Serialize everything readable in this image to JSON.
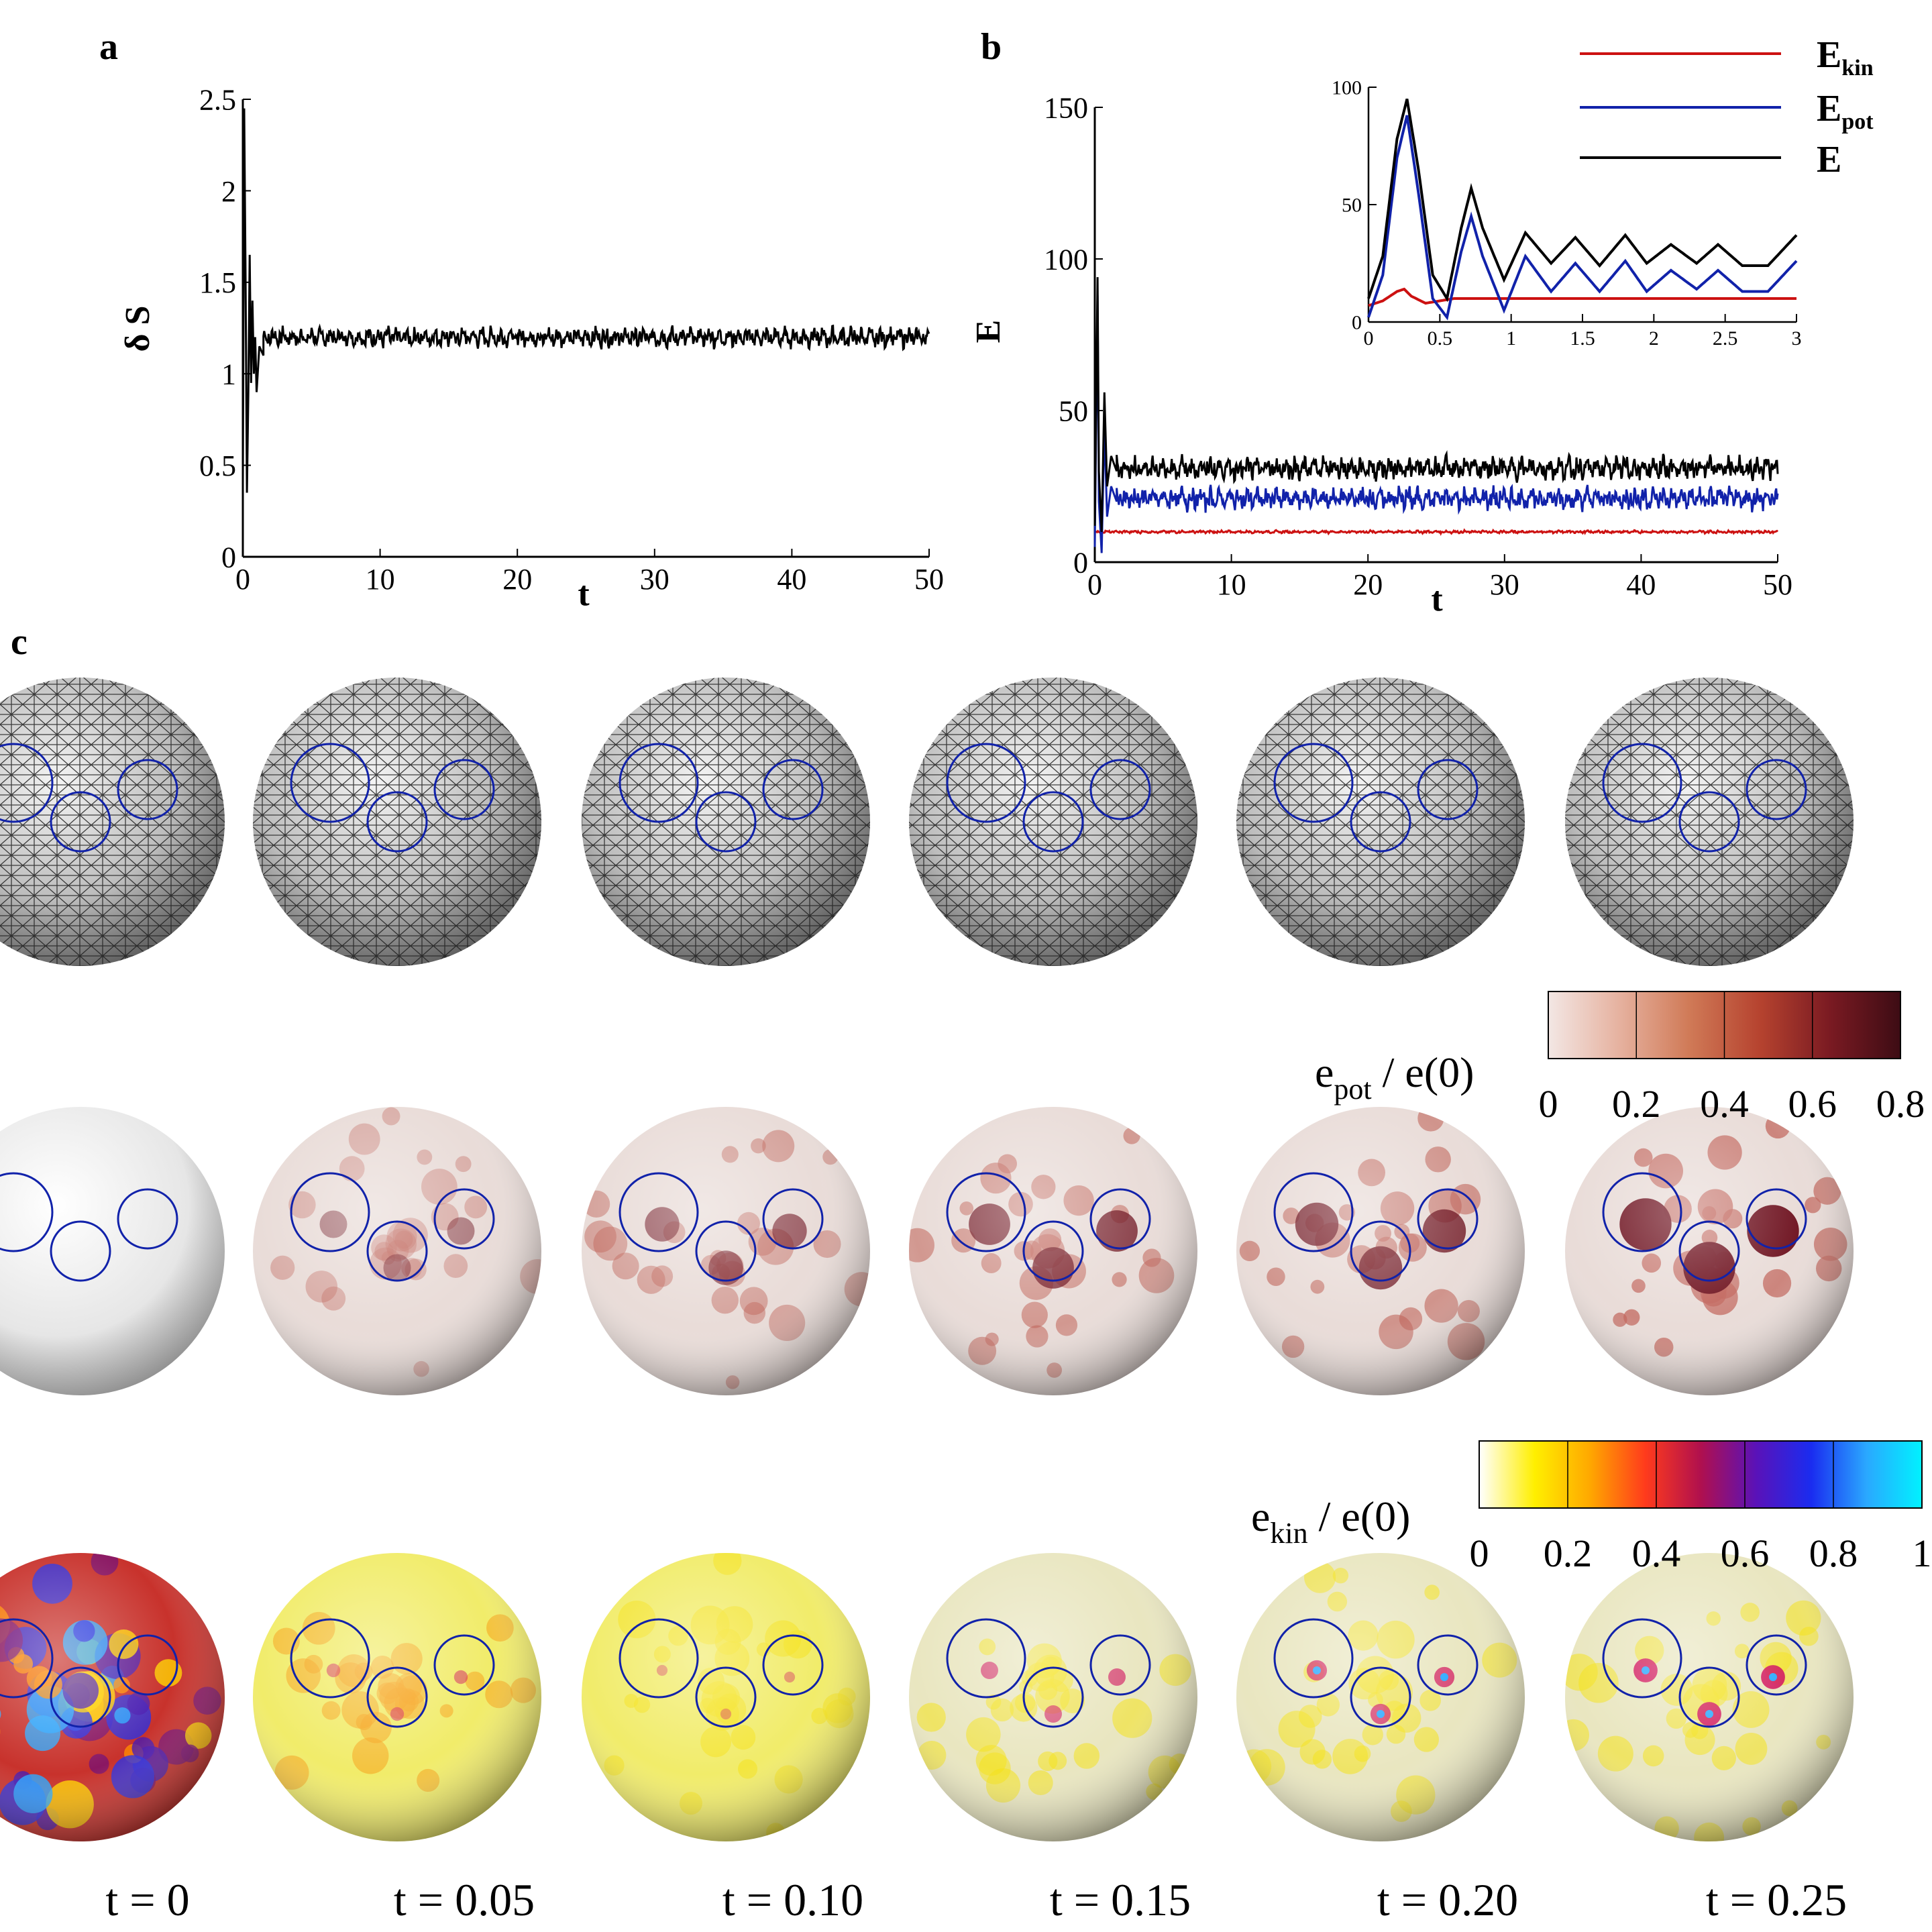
{
  "panels": {
    "a": "a",
    "b": "b",
    "c": "c"
  },
  "chart_data": [
    {
      "type": "line",
      "panel": "a",
      "xlabel": "t",
      "ylabel": "δ S",
      "xlim": [
        0,
        50
      ],
      "ylim": [
        0,
        2.5
      ],
      "xticks": [
        0,
        10,
        20,
        30,
        40,
        50
      ],
      "yticks": [
        0,
        0.5,
        1,
        1.5,
        2,
        2.5
      ],
      "xtick_labels": [
        "0",
        "10",
        "20",
        "30",
        "40",
        "50"
      ],
      "ytick_labels": [
        "0",
        "0.5",
        "1",
        "1.5",
        "2",
        "2.5"
      ],
      "series": [
        {
          "name": "δS",
          "color": "#000000",
          "baseline": 1.2,
          "noise": 0.05,
          "initial": {
            "t": [
              0,
              0.1,
              0.2,
              0.3,
              0.4,
              0.5,
              0.6,
              0.7,
              0.8,
              0.9,
              1.0,
              1.2,
              1.5
            ],
            "y": [
              0.4,
              2.45,
              1.5,
              0.35,
              0.9,
              1.65,
              0.95,
              1.4,
              1.0,
              1.2,
              0.9,
              1.15,
              1.1
            ]
          }
        }
      ]
    },
    {
      "type": "line",
      "panel": "b",
      "xlabel": "t",
      "ylabel": "E",
      "xlim": [
        0,
        50
      ],
      "ylim": [
        0,
        150
      ],
      "xticks": [
        0,
        10,
        20,
        30,
        40,
        50
      ],
      "yticks": [
        0,
        50,
        100,
        150
      ],
      "xtick_labels": [
        "0",
        "10",
        "20",
        "30",
        "40",
        "50"
      ],
      "ytick_labels": [
        "0",
        "50",
        "100",
        "150"
      ],
      "legend": {
        "position": "top-right",
        "entries": [
          {
            "base": "E",
            "sub": "kin",
            "color": "#cc1111"
          },
          {
            "base": "E",
            "sub": "pot",
            "color": "#1122aa"
          },
          {
            "base": "E",
            "sub": "",
            "color": "#000000"
          }
        ]
      },
      "series": [
        {
          "name": "E_kin",
          "color": "#cc1111",
          "baseline": 10,
          "noise": 0.4
        },
        {
          "name": "E_pot",
          "color": "#1122aa",
          "baseline": 21,
          "noise": 3.5,
          "initial": {
            "t": [
              0,
              0.2,
              0.3,
              0.5,
              0.7,
              0.9,
              1.2,
              1.6
            ],
            "y": [
              5,
              88,
              20,
              3,
              45,
              15,
              25,
              20
            ]
          }
        },
        {
          "name": "E",
          "color": "#000000",
          "baseline": 31,
          "noise": 3.5,
          "initial": {
            "t": [
              0,
              0.2,
              0.3,
              0.5,
              0.7,
              0.9,
              1.2,
              1.6
            ],
            "y": [
              12,
              94,
              30,
              10,
              56,
              25,
              35,
              30
            ]
          }
        }
      ],
      "inset": {
        "xlim": [
          0,
          3
        ],
        "ylim": [
          0,
          100
        ],
        "xticks": [
          0,
          0.5,
          1,
          1.5,
          2,
          2.5,
          3
        ],
        "yticks": [
          0,
          50,
          100
        ],
        "xtick_labels": [
          "0",
          "0.5",
          "1",
          "1.5",
          "2",
          "2.5",
          "3"
        ],
        "ytick_labels": [
          "0",
          "50",
          "100"
        ],
        "series": [
          {
            "name": "E_kin",
            "color": "#cc1111",
            "t": [
              0,
              0.1,
              0.2,
              0.25,
              0.3,
              0.4,
              0.5,
              0.6,
              0.8,
              1.0,
              1.5,
              2.0,
              2.5,
              3.0
            ],
            "y": [
              7,
              9,
              13,
              14,
              11,
              8,
              9,
              10,
              10,
              10,
              10,
              10,
              10,
              10
            ]
          },
          {
            "name": "E_pot",
            "color": "#1122aa",
            "t": [
              0,
              0.1,
              0.2,
              0.27,
              0.35,
              0.45,
              0.55,
              0.65,
              0.72,
              0.8,
              0.95,
              1.1,
              1.28,
              1.45,
              1.62,
              1.8,
              1.95,
              2.12,
              2.3,
              2.45,
              2.62,
              2.8,
              3.0
            ],
            "y": [
              2,
              20,
              70,
              88,
              55,
              10,
              2,
              30,
              45,
              28,
              5,
              28,
              13,
              25,
              13,
              26,
              13,
              22,
              14,
              22,
              13,
              13,
              26
            ]
          },
          {
            "name": "E",
            "color": "#000000",
            "t": [
              0,
              0.1,
              0.2,
              0.27,
              0.35,
              0.45,
              0.55,
              0.65,
              0.72,
              0.8,
              0.95,
              1.1,
              1.28,
              1.45,
              1.62,
              1.8,
              1.95,
              2.12,
              2.3,
              2.45,
              2.62,
              2.8,
              3.0
            ],
            "y": [
              10,
              28,
              78,
              95,
              65,
              20,
              10,
              40,
              57,
              40,
              18,
              38,
              25,
              36,
              24,
              37,
              25,
              33,
              25,
              33,
              24,
              24,
              37
            ]
          }
        ]
      }
    }
  ],
  "colorbars": {
    "epot": {
      "base": "e",
      "sub": "pot",
      "suffix": " / e(0)",
      "ticks": [
        "0",
        "0.2",
        "0.4",
        "0.6",
        "0.8"
      ],
      "colors": [
        "#f3e7e4",
        "#e6b2a0",
        "#d07a57",
        "#b6432f",
        "#7a1a22",
        "#3d0c14"
      ]
    },
    "ekin": {
      "base": "e",
      "sub": "kin",
      "suffix": " / e(0)",
      "ticks": [
        "0",
        "0.2",
        "0.4",
        "0.6",
        "0.8",
        "1"
      ],
      "colors": [
        "#ffffff",
        "#ffef00",
        "#ffa800",
        "#ff3b1c",
        "#b0104e",
        "#5a12b8",
        "#1a2cf0",
        "#2aa8ff",
        "#00f2ff"
      ]
    }
  },
  "time_labels": [
    "t = 0",
    "t = 0.05",
    "t = 0.10",
    "t = 0.15",
    "t = 0.20",
    "t = 0.25"
  ],
  "rows": [
    {
      "name": "mesh",
      "base": "#bdbdbd"
    },
    {
      "name": "epot",
      "base": "#e9dcd8",
      "hot": "#6b0f1c",
      "intensity": [
        0,
        0.25,
        0.45,
        0.65,
        0.7,
        0.95
      ]
    },
    {
      "name": "ekin",
      "base": "#f1ec6a",
      "hot": "#d0105a",
      "intensity": [
        0,
        0.3,
        0.15,
        0.5,
        0.65,
        0.85
      ]
    }
  ]
}
